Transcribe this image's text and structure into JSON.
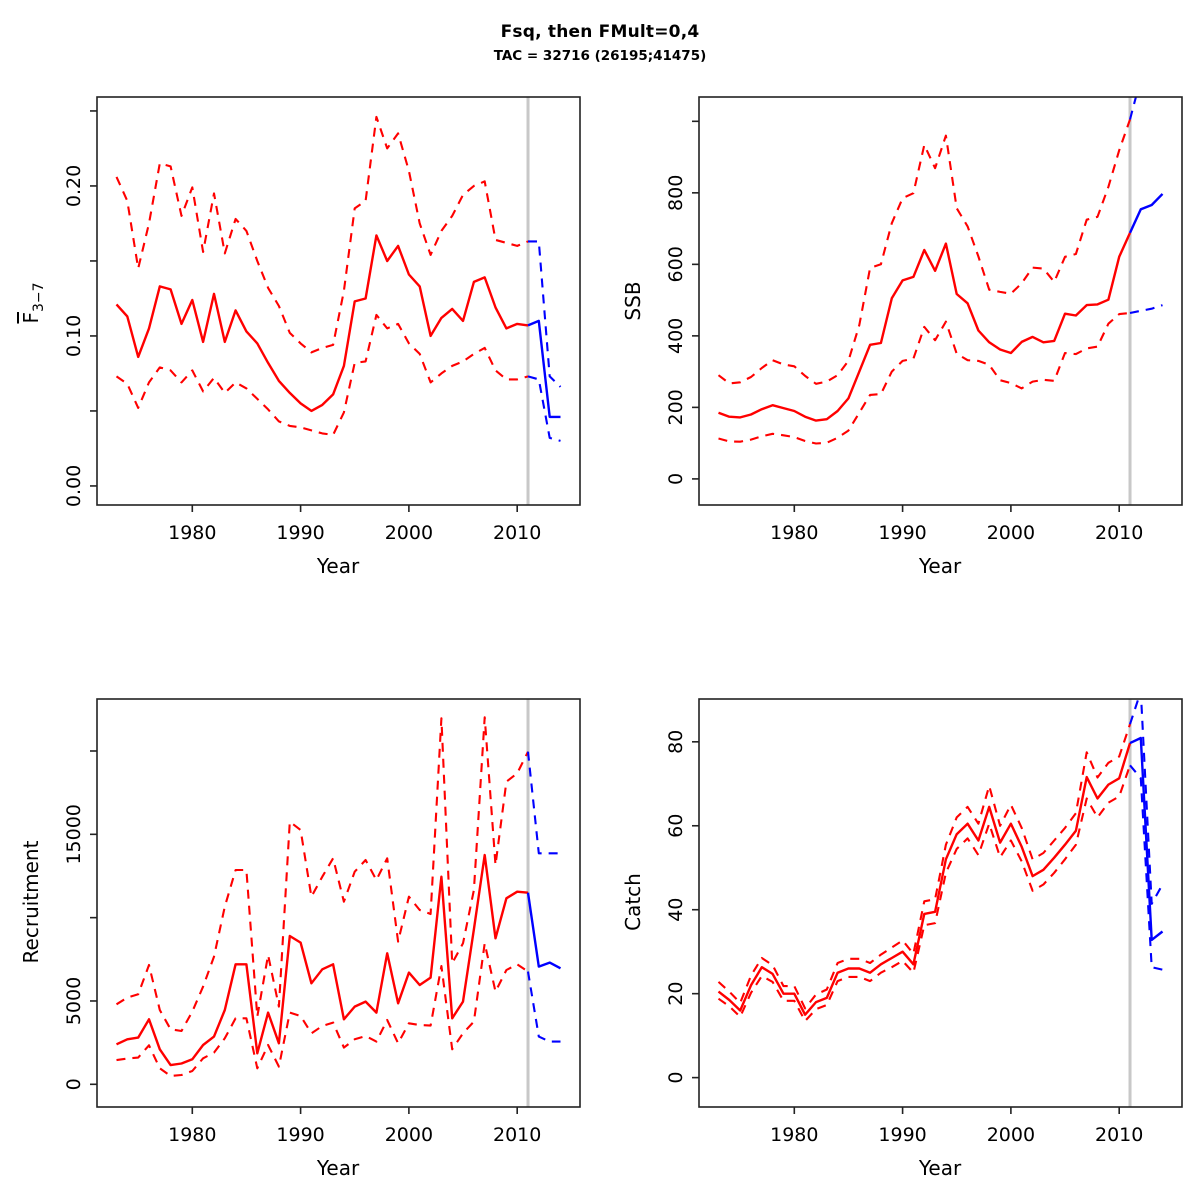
{
  "header": {
    "title": "Fsq, then FMult=0,4",
    "subtitle": "TAC = 32716 (26195;41475)"
  },
  "labels": {
    "xlabel": "Year"
  },
  "chart_data": {
    "type": "line",
    "layout_note": "4 panels, red solid = historical median, red dashed = CI bounds, blue = projection after vline",
    "xlim": [
      1971.2,
      2015.8
    ],
    "xticks": [
      1980,
      1990,
      2000,
      2010
    ],
    "vline_year": 2011,
    "years_hist": [
      1973,
      1974,
      1975,
      1976,
      1977,
      1978,
      1979,
      1980,
      1981,
      1982,
      1983,
      1984,
      1985,
      1986,
      1987,
      1988,
      1989,
      1990,
      1991,
      1992,
      1993,
      1994,
      1995,
      1996,
      1997,
      1998,
      1999,
      2000,
      2001,
      2002,
      2003,
      2004,
      2005,
      2006,
      2007,
      2008,
      2009,
      2010,
      2011
    ],
    "years_proj": [
      2011,
      2012,
      2013,
      2014
    ],
    "colors": {
      "historical": "#ff0000",
      "projection": "#0000ff",
      "vline": "#c8c8c8",
      "box": "#222222"
    },
    "legend": "none",
    "grid": "off",
    "panels": [
      {
        "key": "f",
        "ylabel_base": "F",
        "ylabel_sub": "3−7",
        "ylim": [
          -0.0127,
          0.2593
        ],
        "yticks": [
          {
            "v": 0,
            "label": "0.00"
          },
          {
            "v": 0.05,
            "label": ""
          },
          {
            "v": 0.1,
            "label": "0.10"
          },
          {
            "v": 0.15,
            "label": ""
          },
          {
            "v": 0.2,
            "label": "0.20"
          },
          {
            "v": 0.25,
            "label": ""
          }
        ],
        "hist": {
          "median": [
            0.121,
            0.113,
            0.086,
            0.105,
            0.133,
            0.131,
            0.108,
            0.124,
            0.096,
            0.128,
            0.096,
            0.117,
            0.103,
            0.095,
            0.082,
            0.07,
            0.062,
            0.055,
            0.05,
            0.054,
            0.061,
            0.08,
            0.123,
            0.125,
            0.167,
            0.15,
            0.16,
            0.141,
            0.133,
            0.1,
            0.112,
            0.118,
            0.11,
            0.136,
            0.139,
            0.119,
            0.105,
            0.108,
            0.107
          ],
          "upper": [
            0.206,
            0.19,
            0.145,
            0.175,
            0.215,
            0.213,
            0.18,
            0.199,
            0.156,
            0.195,
            0.155,
            0.178,
            0.17,
            0.15,
            0.132,
            0.12,
            0.102,
            0.095,
            0.089,
            0.092,
            0.094,
            0.13,
            0.185,
            0.19,
            0.246,
            0.225,
            0.235,
            0.21,
            0.175,
            0.154,
            0.17,
            0.18,
            0.194,
            0.2,
            0.203,
            0.164,
            0.162,
            0.16,
            0.163
          ],
          "lower": [
            0.073,
            0.068,
            0.052,
            0.069,
            0.079,
            0.077,
            0.069,
            0.077,
            0.063,
            0.072,
            0.062,
            0.069,
            0.065,
            0.058,
            0.051,
            0.043,
            0.04,
            0.039,
            0.037,
            0.035,
            0.034,
            0.049,
            0.082,
            0.083,
            0.114,
            0.105,
            0.108,
            0.095,
            0.088,
            0.069,
            0.075,
            0.08,
            0.083,
            0.088,
            0.092,
            0.077,
            0.071,
            0.071,
            0.073
          ]
        },
        "proj": {
          "median": [
            0.107,
            0.11,
            0.046,
            0.046
          ],
          "upper": [
            0.163,
            0.163,
            0.073,
            0.066
          ],
          "lower": [
            0.073,
            0.071,
            0.032,
            0.03
          ]
        }
      },
      {
        "key": "ssb",
        "ylabel": "SSB",
        "ylim": [
          -73,
          1068
        ],
        "yticks": [
          {
            "v": 0,
            "label": "0"
          },
          {
            "v": 200,
            "label": "200"
          },
          {
            "v": 400,
            "label": "400"
          },
          {
            "v": 600,
            "label": "600"
          },
          {
            "v": 800,
            "label": "800"
          },
          {
            "v": 1000,
            "label": ""
          }
        ],
        "hist": {
          "median": [
            185,
            174,
            172,
            180,
            195,
            206,
            198,
            190,
            174,
            163,
            167,
            190,
            225,
            300,
            375,
            380,
            505,
            555,
            565,
            640,
            582,
            658,
            517,
            491,
            415,
            382,
            362,
            352,
            383,
            397,
            382,
            386,
            462,
            457,
            486,
            488,
            501,
            621,
            688
          ],
          "upper": [
            290,
            267,
            270,
            285,
            310,
            332,
            320,
            315,
            288,
            266,
            272,
            290,
            330,
            430,
            590,
            600,
            715,
            785,
            799,
            934,
            869,
            960,
            757,
            706,
            622,
            529,
            523,
            518,
            547,
            591,
            588,
            551,
            621,
            629,
            725,
            733,
            817,
            919,
            1005
          ],
          "lower": [
            113,
            105,
            104,
            110,
            119,
            126,
            122,
            117,
            106,
            99,
            101,
            115,
            135,
            185,
            235,
            237,
            300,
            330,
            336,
            425,
            388,
            440,
            350,
            332,
            330,
            319,
            276,
            268,
            253,
            272,
            277,
            274,
            352,
            349,
            365,
            370,
            434,
            461,
            464
          ]
        },
        "proj": {
          "median": [
            688,
            754,
            766,
            797
          ],
          "upper": [
            1005,
            1120,
            1200,
            1215
          ],
          "lower": [
            464,
            470,
            476,
            486
          ]
        }
      },
      {
        "key": "recruitment",
        "ylabel": "Recruitment",
        "ylim": [
          -1362,
          23120
        ],
        "yticks": [
          {
            "v": 0,
            "label": "0"
          },
          {
            "v": 5000,
            "label": "5000"
          },
          {
            "v": 10000,
            "label": ""
          },
          {
            "v": 15000,
            "label": "15000"
          },
          {
            "v": 20000,
            "label": ""
          }
        ],
        "hist": {
          "median": [
            2400,
            2700,
            2800,
            3900,
            2100,
            1150,
            1250,
            1500,
            2360,
            2860,
            4460,
            7200,
            7200,
            1860,
            4300,
            2460,
            8900,
            8500,
            6060,
            6900,
            7200,
            3900,
            4660,
            4960,
            4300,
            7860,
            4860,
            6700,
            5960,
            6400,
            12460,
            3960,
            4960,
            9300,
            13760,
            8760,
            11160,
            11560,
            11500
          ],
          "upper": [
            4800,
            5200,
            5400,
            7160,
            4460,
            3300,
            3200,
            4360,
            5860,
            7660,
            10660,
            12860,
            12860,
            4060,
            7760,
            4660,
            15760,
            15260,
            11260,
            12460,
            13560,
            10960,
            12760,
            13460,
            12260,
            13560,
            8560,
            11260,
            10460,
            10220,
            21960,
            7260,
            8460,
            11660,
            22020,
            13160,
            18160,
            18660,
            19960
          ],
          "lower": [
            1450,
            1550,
            1600,
            2340,
            960,
            500,
            560,
            800,
            1560,
            1900,
            2760,
            3960,
            3960,
            960,
            2360,
            1060,
            4300,
            4100,
            3060,
            3500,
            3700,
            2200,
            2700,
            2900,
            2560,
            3860,
            2460,
            3660,
            3560,
            3520,
            7100,
            2100,
            3060,
            3760,
            8460,
            5560,
            6860,
            7200,
            6760
          ]
        },
        "proj": {
          "median": [
            11500,
            7060,
            7300,
            6960
          ],
          "upper": [
            19960,
            13860,
            13860,
            13860
          ],
          "lower": [
            6760,
            2860,
            2560,
            2560
          ]
        }
      },
      {
        "key": "catch",
        "ylabel": "Catch",
        "ylim": [
          -7,
          90.2
        ],
        "yticks": [
          {
            "v": 0,
            "label": "0"
          },
          {
            "v": 20,
            "label": "20"
          },
          {
            "v": 40,
            "label": "40"
          },
          {
            "v": 60,
            "label": "60"
          },
          {
            "v": 80,
            "label": "80"
          }
        ],
        "hist": {
          "median": [
            20.5,
            18.5,
            16,
            22,
            26.3,
            24.7,
            20,
            20,
            15,
            18,
            19,
            25,
            26,
            26,
            25,
            27,
            28.5,
            30,
            27,
            39,
            39.5,
            52,
            58,
            60.5,
            56.5,
            64.5,
            56,
            60.5,
            55,
            48,
            49.5,
            52.4,
            55.5,
            58.8,
            71.6,
            66.5,
            69.8,
            71.3,
            79.7
          ],
          "upper": [
            22.8,
            20.5,
            17.8,
            24.3,
            28.5,
            26.8,
            21.8,
            21.8,
            16.5,
            19.8,
            21,
            27.3,
            28.3,
            28.3,
            27.3,
            29.3,
            31,
            32.7,
            29.5,
            42,
            42.5,
            55.5,
            62,
            64.5,
            60.5,
            69.5,
            60,
            65,
            59.5,
            52,
            53.5,
            56.5,
            59.5,
            63,
            77.5,
            71.5,
            75,
            76.5,
            84.2
          ],
          "lower": [
            18.8,
            17,
            14.5,
            20.2,
            24.2,
            22.8,
            18.3,
            18.3,
            13.5,
            16.3,
            17.3,
            23,
            24,
            24,
            23,
            25,
            26.3,
            27.8,
            25,
            36.3,
            36.8,
            48.8,
            54.5,
            57,
            53,
            60.5,
            52.5,
            56.5,
            51.5,
            44.5,
            46,
            48.8,
            52,
            55.5,
            66.5,
            62,
            65.5,
            67,
            74.4
          ]
        },
        "proj": {
          "median": [
            79.7,
            80.9,
            32.8,
            34.8
          ],
          "upper": [
            84.2,
            92,
            41.4,
            46
          ],
          "lower": [
            74.4,
            71.3,
            26.3,
            25.7
          ]
        }
      }
    ]
  }
}
